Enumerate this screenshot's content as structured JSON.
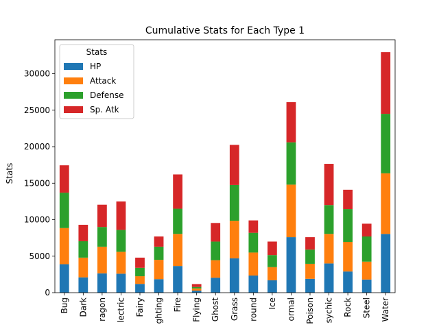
{
  "chart_data": {
    "type": "bar",
    "stacked": true,
    "title": "Cumulative Stats for Each Type 1",
    "xlabel": "",
    "ylabel": "Stats",
    "ylim": [
      0,
      34650
    ],
    "yticks": [
      0,
      5000,
      10000,
      15000,
      20000,
      25000,
      30000
    ],
    "categories": [
      "Bug",
      "Dark",
      "Dragon",
      "Electric",
      "Fairy",
      "Fighting",
      "Fire",
      "Flying",
      "Ghost",
      "Grass",
      "Ground",
      "Ice",
      "Normal",
      "Poison",
      "Psychic",
      "Rock",
      "Steel",
      "Water"
    ],
    "tick_labels": [
      "Bug",
      "Dark",
      "ragon",
      "lectric",
      "Fairy",
      "ghting",
      "Fire",
      "Flying",
      "Ghost",
      "Grass",
      "round",
      "Ice",
      "ormal",
      "Poison",
      "sychic",
      "Rock",
      "Steel",
      "Water"
    ],
    "series": [
      {
        "name": "HP",
        "color": "#1f77b4",
        "values": [
          3900,
          2100,
          2650,
          2600,
          1200,
          1850,
          3650,
          280,
          2050,
          4700,
          2350,
          1700,
          7600,
          1900,
          4000,
          2900,
          1800,
          8050
        ]
      },
      {
        "name": "Attack",
        "color": "#ff7f0e",
        "values": [
          4950,
          2700,
          3650,
          3000,
          1050,
          2650,
          4400,
          300,
          2400,
          5150,
          3150,
          1800,
          7200,
          2050,
          4050,
          4050,
          2450,
          8300
        ]
      },
      {
        "name": "Defense",
        "color": "#2ca02c",
        "values": [
          4850,
          2250,
          2700,
          3000,
          1150,
          1800,
          3450,
          200,
          2550,
          4900,
          2700,
          1650,
          5800,
          1950,
          3950,
          4500,
          3450,
          8150
        ]
      },
      {
        "name": "Sp. Atk",
        "color": "#d62728",
        "values": [
          3750,
          2250,
          3050,
          3900,
          1400,
          1400,
          4700,
          400,
          2550,
          5500,
          1700,
          1850,
          5500,
          1700,
          5650,
          2650,
          1750,
          8450
        ]
      }
    ],
    "legend": {
      "title": "Stats",
      "position": "top-left"
    },
    "grid": false
  }
}
